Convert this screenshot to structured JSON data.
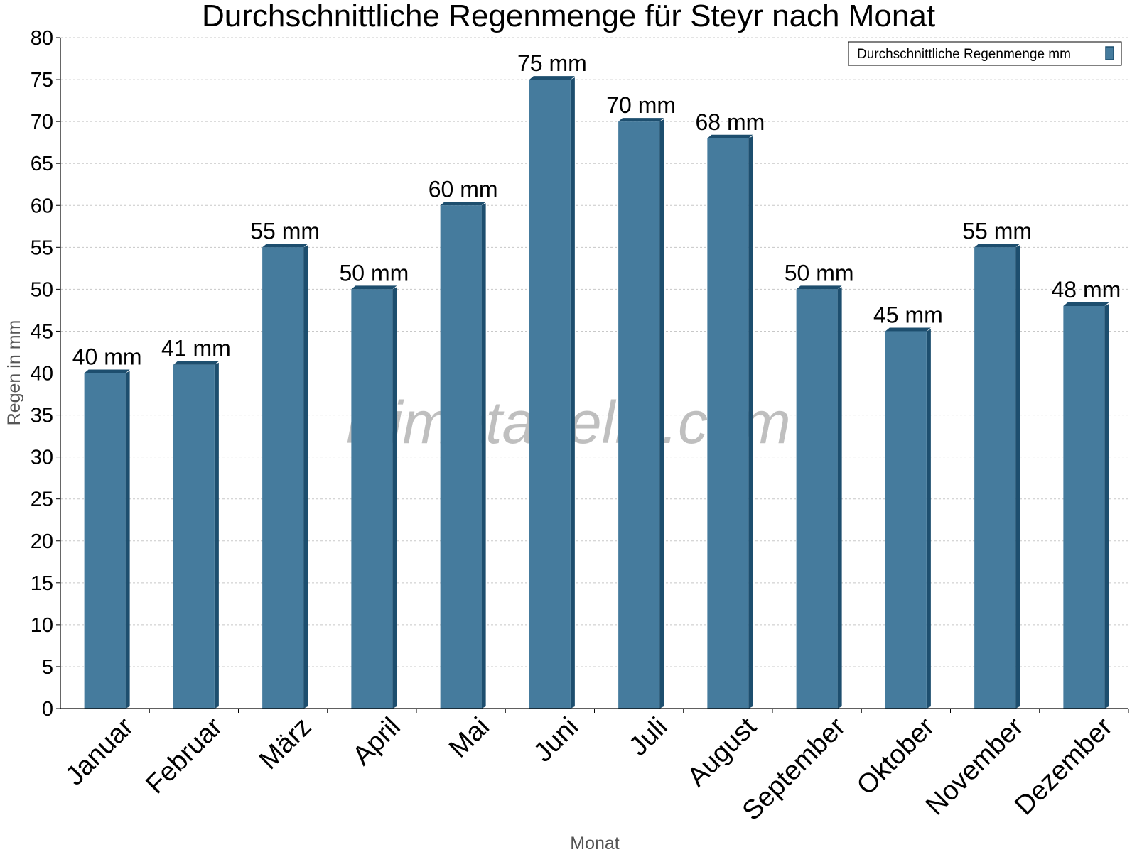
{
  "chart_data": {
    "type": "bar",
    "title": "Durchschnittliche Regenmenge für Steyr nach Monat",
    "xlabel": "Monat",
    "ylabel": "Regen in mm",
    "categories": [
      "Januar",
      "Februar",
      "März",
      "April",
      "Mai",
      "Juni",
      "Juli",
      "August",
      "September",
      "Oktober",
      "November",
      "Dezember"
    ],
    "series": [
      {
        "name": "Durchschnittliche Regenmenge mm",
        "values": [
          40,
          41,
          55,
          50,
          60,
          75,
          70,
          68,
          50,
          45,
          55,
          48
        ],
        "labels": [
          "40 mm",
          "41 mm",
          "55 mm",
          "50 mm",
          "60 mm",
          "75 mm",
          "70 mm",
          "68 mm",
          "50 mm",
          "45 mm",
          "55 mm",
          "48 mm"
        ],
        "color": "#457b9d",
        "edge_color": "#1d4e6e"
      }
    ],
    "ylim": [
      0,
      80
    ],
    "yticks": [
      0,
      5,
      10,
      15,
      20,
      25,
      30,
      35,
      40,
      45,
      50,
      55,
      60,
      65,
      70,
      75,
      80
    ],
    "grid": true,
    "legend_position": "top-right"
  },
  "watermark": "klimatabelle.com"
}
